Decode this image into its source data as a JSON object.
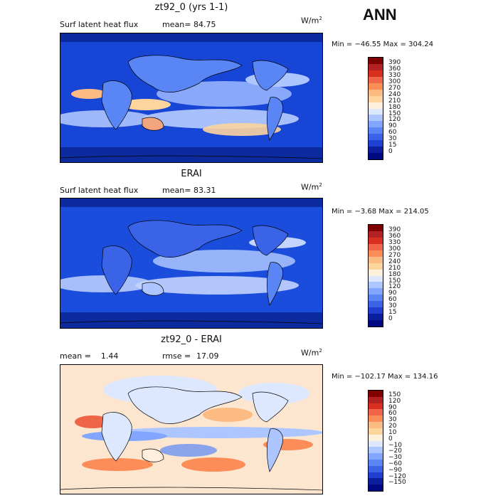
{
  "season": "ANN",
  "units": {
    "base": "W/m",
    "exp": "2"
  },
  "panels": [
    {
      "id": "model",
      "title": "zt92_0 (yrs 1-1)",
      "left_label": "Surf latent heat flux",
      "stat_label": "mean=",
      "stat_value": "84.75",
      "minmax": "Min = −46.55 Max = 304.24"
    },
    {
      "id": "obs",
      "title": "ERAI",
      "left_label": "Surf latent heat flux",
      "stat_label": "mean=",
      "stat_value": "83.31",
      "minmax": "Min =  −3.68 Max = 214.05"
    },
    {
      "id": "diff",
      "title": "zt92_0 - ERAI",
      "left_label": "mean =    1.44",
      "stat_label": "rmse =",
      "stat_value": "17.09",
      "minmax": "Min = −102.17 Max = 134.16"
    }
  ],
  "colorbar_abs": {
    "labels": [
      "390",
      "360",
      "330",
      "300",
      "270",
      "240",
      "210",
      "180",
      "150",
      "120",
      "90",
      "60",
      "30",
      "15",
      "0"
    ],
    "colors": [
      "#7f0000",
      "#b22222",
      "#d7301f",
      "#ef6548",
      "#fc8d59",
      "#fdbb84",
      "#fdd49e",
      "#fff0dd",
      "#dde8ff",
      "#aec6ff",
      "#82a6ff",
      "#5a86f5",
      "#3a63e8",
      "#2040cf",
      "#0a1e9e",
      "#000a80"
    ]
  },
  "colorbar_diff": {
    "labels": [
      "150",
      "120",
      "90",
      "60",
      "30",
      "20",
      "10",
      "0",
      "−10",
      "−20",
      "−30",
      "−60",
      "−90",
      "−120",
      "−150"
    ],
    "colors": [
      "#7f0000",
      "#b22222",
      "#d7301f",
      "#ef6548",
      "#fc8d59",
      "#fdbb84",
      "#fdd49e",
      "#fff0dd",
      "#dde8ff",
      "#aec6ff",
      "#82a6ff",
      "#5a86f5",
      "#3a63e8",
      "#2040cf",
      "#0a1e9e",
      "#000a80"
    ]
  }
}
